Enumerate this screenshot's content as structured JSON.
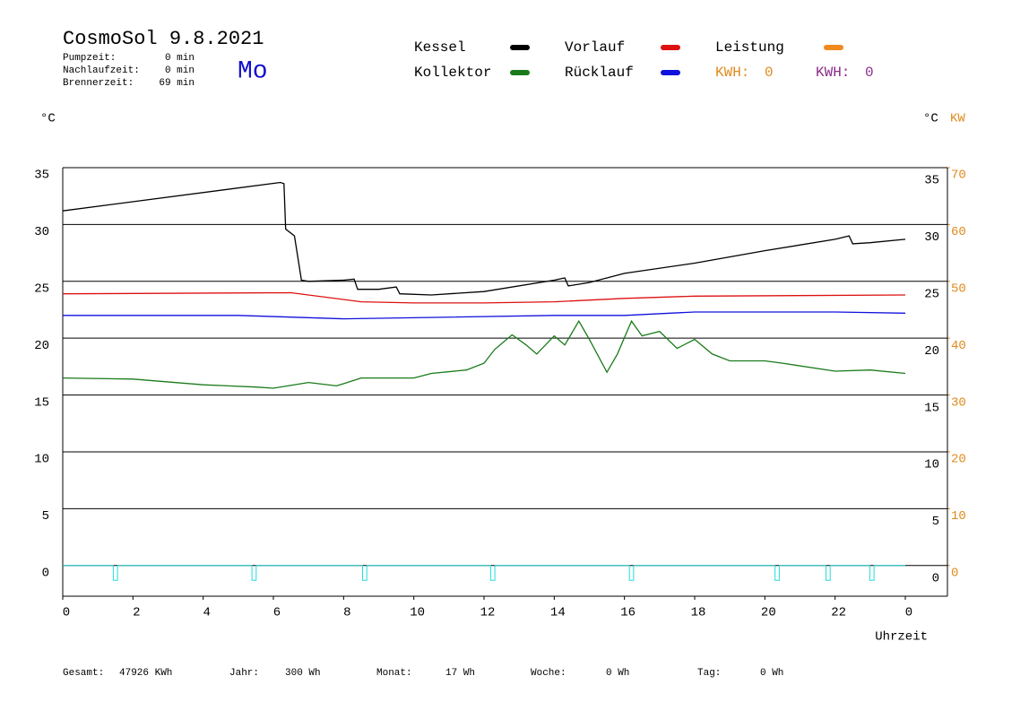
{
  "chart_data": {
    "type": "line",
    "title": "CosmoSol 9.8.2021",
    "weekday": "Mo",
    "info": [
      {
        "label": "Pumpzeit:",
        "value": "0 min"
      },
      {
        "label": "Nachlaufzeit:",
        "value": "0 min"
      },
      {
        "label": "Brennerzeit:",
        "value": "69 min"
      }
    ],
    "y_unit": "°C",
    "y2_unit": "KW",
    "x_label": "Uhrzeit",
    "kwh_labels": [
      {
        "label": "KWH:",
        "value": 0,
        "color": "#e08a1e"
      },
      {
        "label": "KWH:",
        "value": 0,
        "color": "#8a2c8a"
      }
    ],
    "xlim": [
      0,
      25.2
    ],
    "xticks": [
      0,
      2,
      4,
      6,
      8,
      10,
      12,
      14,
      16,
      18,
      20,
      22,
      {
        "value": 24,
        "label": "0"
      }
    ],
    "ylim": [
      -2.7,
      35
    ],
    "yticks": [
      0,
      5,
      10,
      15,
      20,
      25,
      30,
      35
    ],
    "y2lim": [
      -5.4,
      70
    ],
    "y2ticks": [
      0,
      10,
      20,
      30,
      40,
      50,
      60,
      70
    ],
    "grid": true,
    "series": [
      {
        "name": "Kessel",
        "color": "#000000",
        "x": [
          0,
          6.2,
          6.3,
          6.35,
          6.6,
          6.8,
          7.0,
          8.0,
          8.3,
          8.4,
          9.0,
          9.5,
          9.6,
          10.5,
          12,
          14,
          14.3,
          14.4,
          15,
          16,
          18,
          20,
          22,
          22.4,
          22.5,
          23,
          24
        ],
        "values": [
          31.2,
          33.7,
          33.6,
          29.6,
          29.0,
          25.1,
          25.0,
          25.1,
          25.2,
          24.3,
          24.3,
          24.5,
          23.9,
          23.8,
          24.1,
          25.1,
          25.3,
          24.6,
          24.9,
          25.7,
          26.6,
          27.7,
          28.7,
          29.0,
          28.3,
          28.4,
          28.7
        ]
      },
      {
        "name": "Kollektor",
        "color": "#1a7a1a",
        "x": [
          0,
          2,
          4,
          5.5,
          6,
          7,
          7.8,
          8.5,
          10,
          10.5,
          11.5,
          12,
          12.3,
          12.8,
          13.2,
          13.5,
          14,
          14.3,
          14.7,
          15,
          15.5,
          15.8,
          16.2,
          16.5,
          17,
          17.5,
          18,
          18.5,
          19,
          20,
          20.5,
          22,
          23,
          24
        ],
        "values": [
          16.5,
          16.4,
          15.9,
          15.7,
          15.6,
          16.1,
          15.8,
          16.5,
          16.5,
          16.9,
          17.2,
          17.8,
          19.0,
          20.3,
          19.4,
          18.6,
          20.2,
          19.4,
          21.5,
          19.9,
          17.0,
          18.6,
          21.5,
          20.2,
          20.6,
          19.1,
          19.9,
          18.6,
          18.0,
          18.0,
          17.8,
          17.1,
          17.2,
          16.9
        ]
      },
      {
        "name": "Vorlauf",
        "color": "#dd1111",
        "x": [
          0,
          6.5,
          8.5,
          10,
          12,
          14,
          16,
          18,
          24
        ],
        "values": [
          23.9,
          24.0,
          23.2,
          23.1,
          23.1,
          23.2,
          23.5,
          23.7,
          23.8
        ]
      },
      {
        "name": "Rücklauf",
        "color": "#1111dd",
        "x": [
          0,
          5,
          8,
          10,
          14,
          16,
          18,
          22,
          24
        ],
        "values": [
          22.0,
          22.0,
          21.7,
          21.8,
          22.0,
          22.0,
          22.3,
          22.3,
          22.2
        ]
      },
      {
        "name": "Leistung",
        "color": "#f08a1e",
        "x": [],
        "values": []
      },
      {
        "color": "#22dddd",
        "x": [
          0,
          1.44,
          1.44,
          1.56,
          1.56,
          5.39,
          5.39,
          5.51,
          5.51,
          8.54,
          8.54,
          8.66,
          8.66,
          12.19,
          12.19,
          12.31,
          12.31,
          16.14,
          16.14,
          16.26,
          16.26,
          20.29,
          20.29,
          20.41,
          20.41,
          21.74,
          21.74,
          21.86,
          21.86,
          22.99,
          22.99,
          23.11,
          23.11,
          24
        ],
        "values": [
          0,
          0,
          -1.3,
          -1.3,
          0,
          0,
          -1.3,
          -1.3,
          0,
          0,
          -1.3,
          -1.3,
          0,
          0,
          -1.3,
          -1.3,
          0,
          0,
          -1.3,
          -1.3,
          0,
          0,
          -1.3,
          -1.3,
          0,
          0,
          -1.3,
          -1.3,
          0,
          0,
          -1.3,
          -1.3,
          0,
          0
        ]
      }
    ],
    "stats": [
      {
        "label": "Gesamt:",
        "value": "47926 KWh"
      },
      {
        "label": "Jahr:",
        "value": "300 Wh"
      },
      {
        "label": "Monat:",
        "value": "17 Wh"
      },
      {
        "label": "Woche:",
        "value": "0 Wh"
      },
      {
        "label": "Tag:",
        "value": "0 Wh"
      }
    ]
  }
}
